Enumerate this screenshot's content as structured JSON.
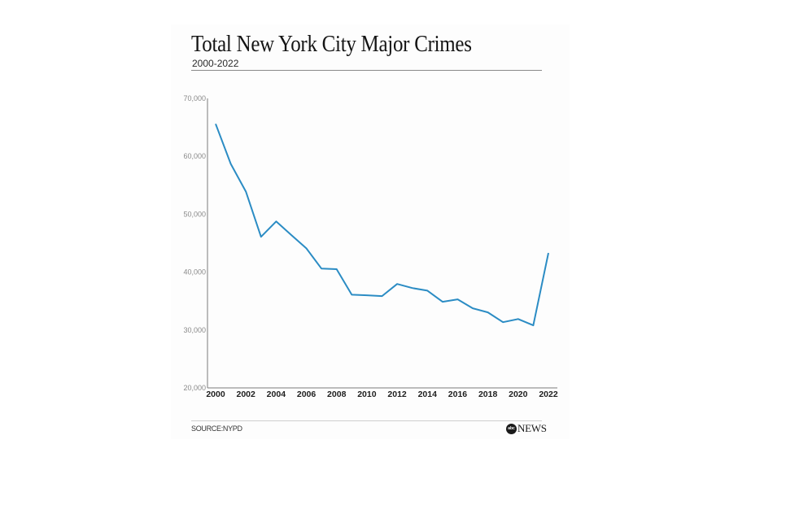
{
  "chart_data": {
    "type": "line",
    "title": "Total New York City Major Crimes",
    "subtitle": "2000-2022",
    "xlabel": "",
    "ylabel": "",
    "x": [
      2000,
      2001,
      2002,
      2003,
      2004,
      2005,
      2006,
      2007,
      2008,
      2009,
      2010,
      2011,
      2012,
      2013,
      2014,
      2015,
      2016,
      2017,
      2018,
      2019,
      2020,
      2021,
      2022
    ],
    "series": [
      {
        "name": "Total major crimes",
        "color": "#2b8cc4",
        "values": [
          65600,
          58700,
          53900,
          46100,
          48750,
          46400,
          44100,
          40600,
          40500,
          36100,
          36000,
          35850,
          37950,
          37250,
          36800,
          34870,
          35300,
          33750,
          33050,
          31350,
          31900,
          30800,
          43300
        ]
      }
    ],
    "ylim": [
      20000,
      70000
    ],
    "xlim": [
      2000,
      2022
    ],
    "y_ticks": [
      "20,000",
      "30,000",
      "40,000",
      "50,000",
      "60,000",
      "70,000"
    ],
    "y_tick_values": [
      20000,
      30000,
      40000,
      50000,
      60000,
      70000
    ],
    "x_ticks": [
      "2000",
      "2002",
      "2004",
      "2006",
      "2008",
      "2010",
      "2012",
      "2014",
      "2016",
      "2018",
      "2020",
      "2022"
    ],
    "x_tick_values": [
      2000,
      2002,
      2004,
      2006,
      2008,
      2010,
      2012,
      2014,
      2016,
      2018,
      2020,
      2022
    ],
    "grid": false,
    "legend": "none"
  },
  "footer": {
    "source": "SOURCE:NYPD",
    "logo_mark": "abc",
    "logo_text": "NEWS"
  }
}
